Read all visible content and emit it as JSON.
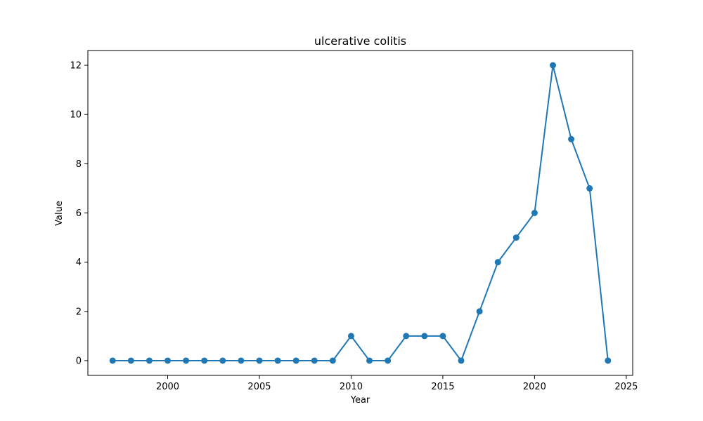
{
  "chart_data": {
    "type": "line",
    "title": "ulcerative colitis",
    "xlabel": "Year",
    "ylabel": "Value",
    "xlim": [
      1995.65,
      2025.35
    ],
    "ylim": [
      -0.6,
      12.6
    ],
    "xticks": [
      2000,
      2005,
      2010,
      2015,
      2020,
      2025
    ],
    "yticks": [
      0,
      2,
      4,
      6,
      8,
      10,
      12
    ],
    "grid": false,
    "legend": "none",
    "series": [
      {
        "color": "#1f77b4",
        "marker": "circle",
        "x": [
          1997,
          1998,
          1999,
          2000,
          2001,
          2002,
          2003,
          2004,
          2005,
          2006,
          2007,
          2008,
          2009,
          2010,
          2011,
          2012,
          2013,
          2014,
          2015,
          2016,
          2017,
          2018,
          2019,
          2020,
          2021,
          2022,
          2023,
          2024
        ],
        "y": [
          0,
          0,
          0,
          0,
          0,
          0,
          0,
          0,
          0,
          0,
          0,
          0,
          0,
          1,
          0,
          0,
          1,
          1,
          1,
          0,
          2,
          4,
          5,
          6,
          12,
          9,
          7,
          0
        ]
      }
    ]
  }
}
